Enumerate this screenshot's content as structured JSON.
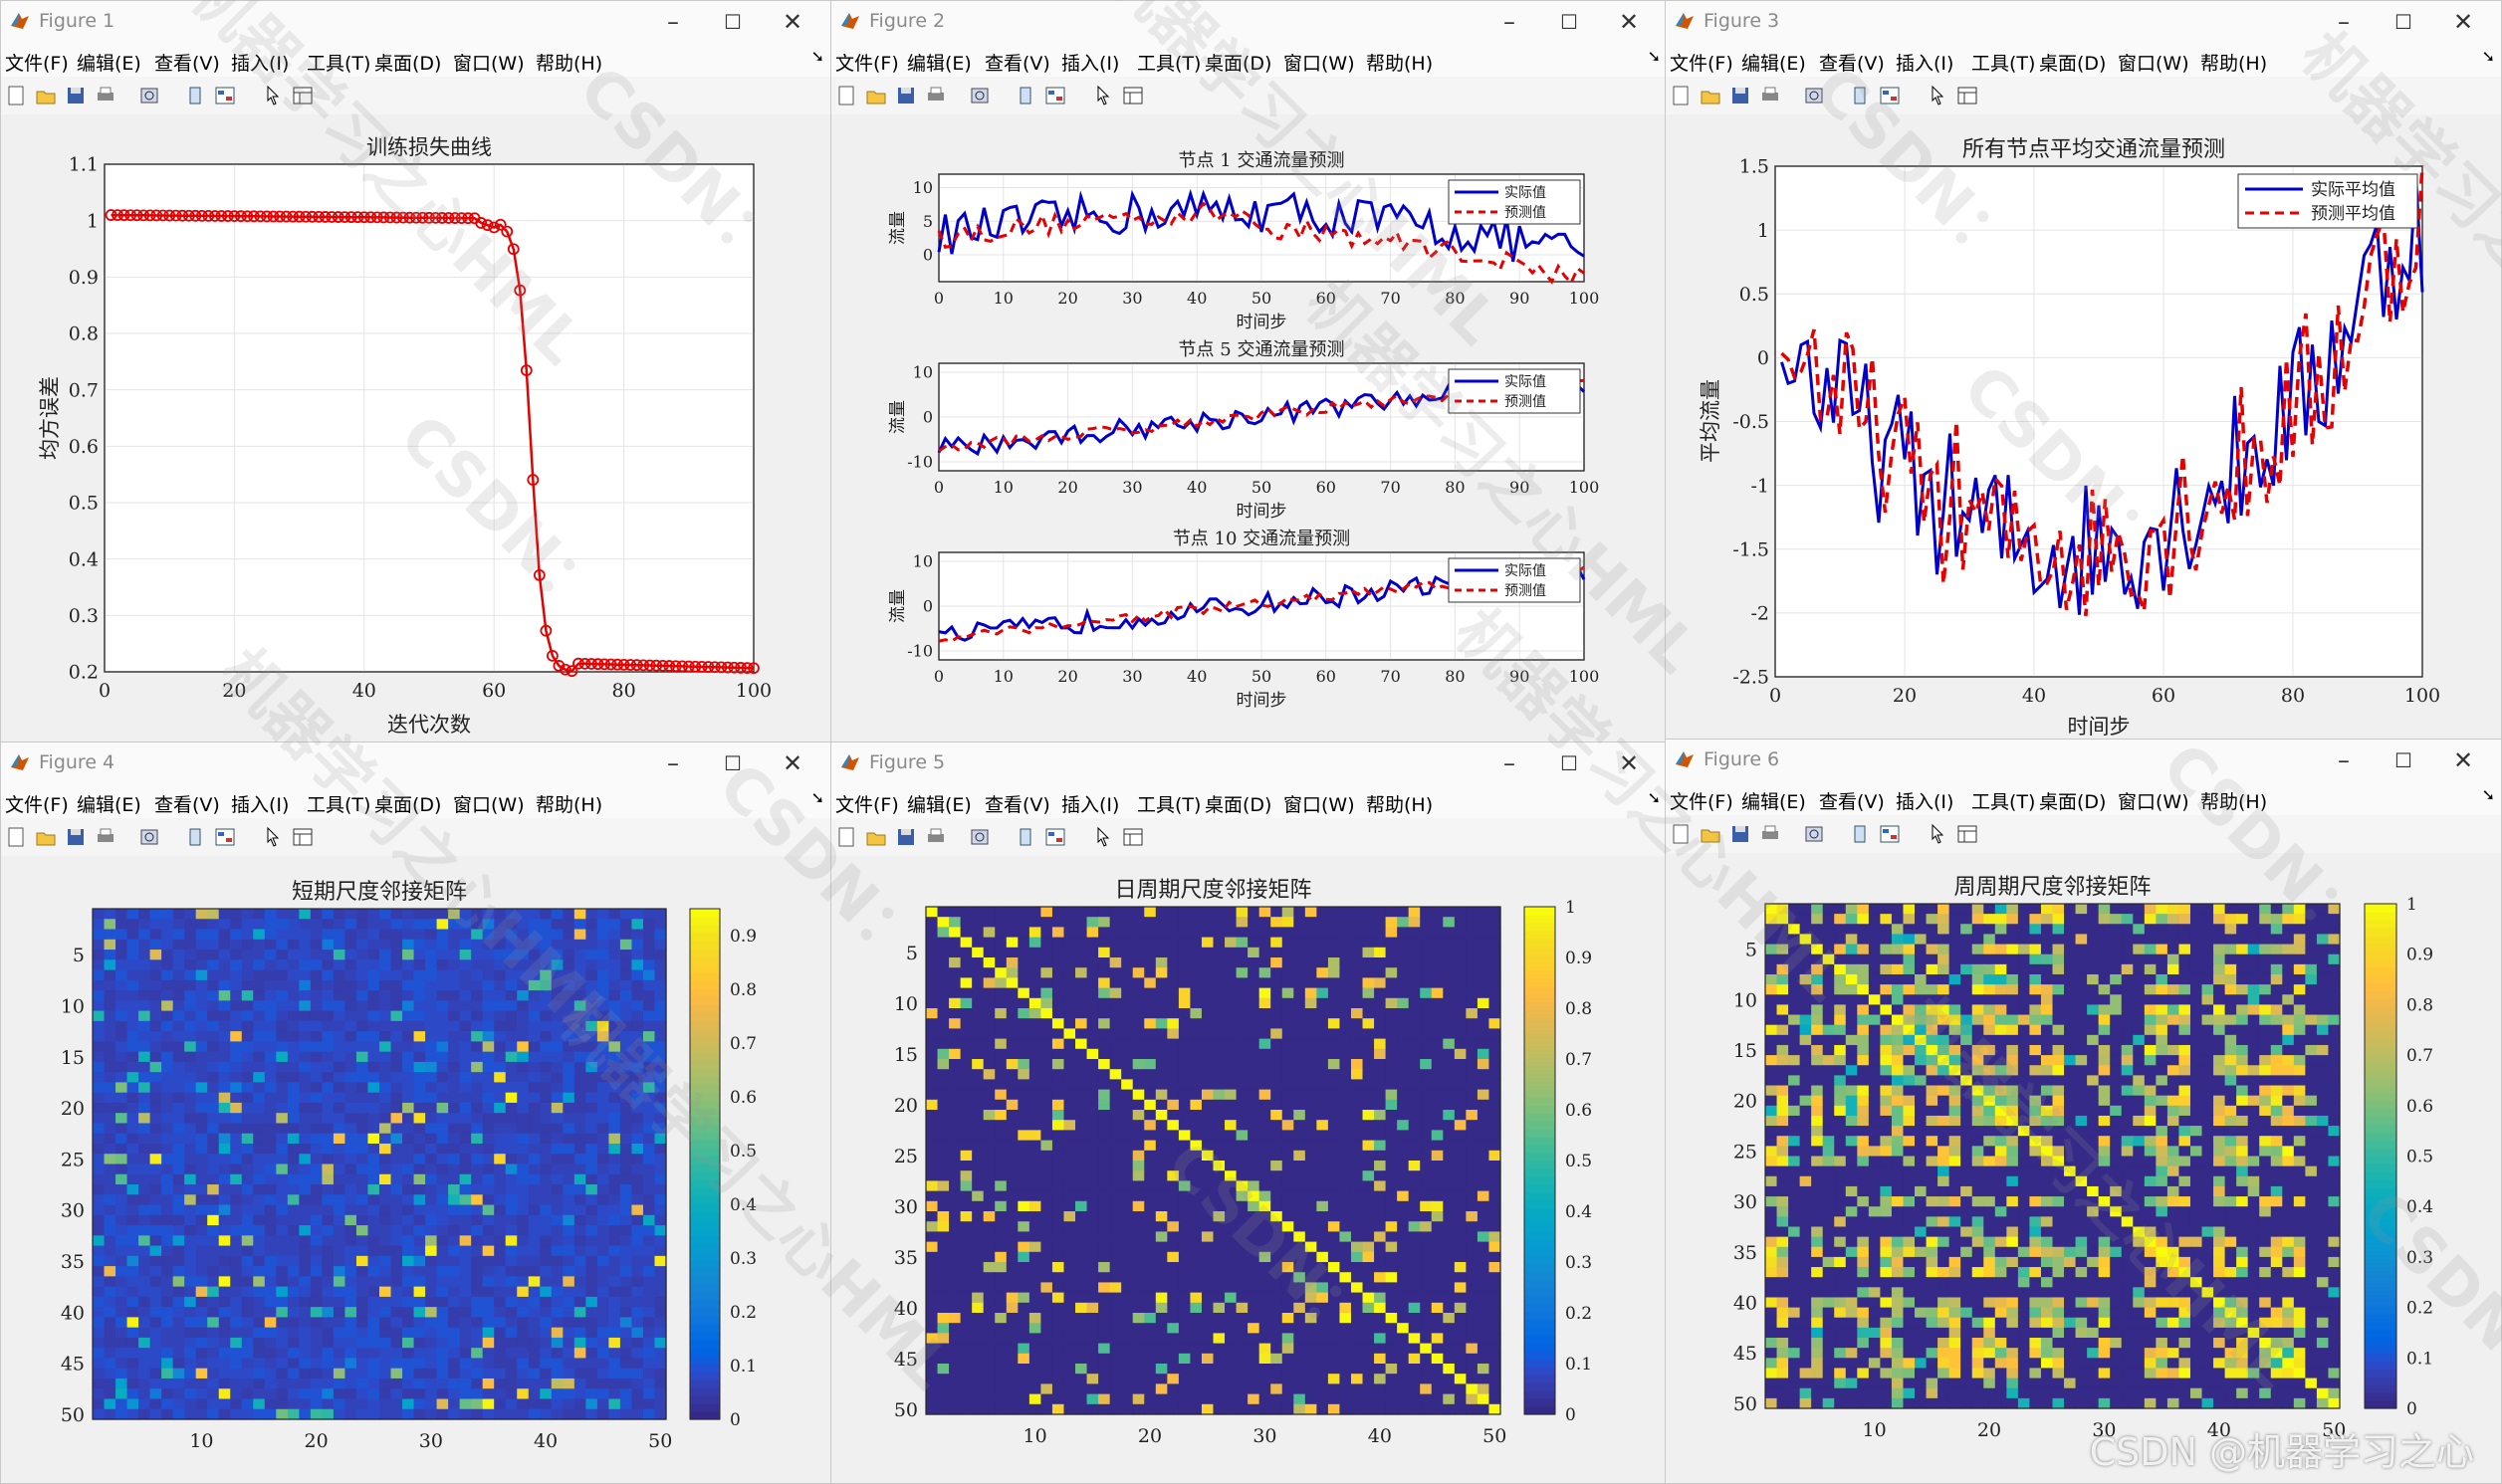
{
  "menu_items": [
    "文件(F)",
    "编辑(E)",
    "查看(V)",
    "插入(I)",
    "工具(T)",
    "桌面(D)",
    "窗口(W)",
    "帮助(H)"
  ],
  "windows": [
    {
      "title": "Figure 1"
    },
    {
      "title": "Figure 2"
    },
    {
      "title": "Figure 3"
    },
    {
      "title": "Figure 4"
    },
    {
      "title": "Figure 5"
    },
    {
      "title": "Figure 6"
    }
  ],
  "fig1": {
    "title": "训练损失曲线",
    "xlabel": "迭代次数",
    "ylabel": "均方误差",
    "xticks": [
      "0",
      "20",
      "40",
      "60",
      "80",
      "100"
    ],
    "yticks": [
      "0.2",
      "0.3",
      "0.4",
      "0.5",
      "0.6",
      "0.7",
      "0.8",
      "0.9",
      "1",
      "1.1"
    ],
    "line_color": "#e60000"
  },
  "fig2": {
    "xlabel": "时间步",
    "ylabel": "流量",
    "xticks": [
      "0",
      "10",
      "20",
      "30",
      "40",
      "50",
      "60",
      "70",
      "80",
      "90",
      "100"
    ],
    "legend": [
      "实际值",
      "预测值"
    ],
    "panels": [
      {
        "title": "节点 1 交通流量预测",
        "yticks": [
          "10",
          "5",
          "0"
        ]
      },
      {
        "title": "节点 5 交通流量预测",
        "yticks": [
          "10",
          "0",
          "-10"
        ]
      },
      {
        "title": "节点 10 交通流量预测",
        "yticks": [
          "10",
          "0",
          "-10"
        ]
      }
    ]
  },
  "fig3": {
    "title": "所有节点平均交通流量预测",
    "xlabel": "时间步",
    "ylabel": "平均流量",
    "xticks": [
      "0",
      "20",
      "40",
      "60",
      "80",
      "100"
    ],
    "yticks": [
      "1.5",
      "1",
      "0.5",
      "0",
      "-0.5",
      "-1",
      "-1.5",
      "-2",
      "-2.5"
    ],
    "legend": [
      "实际平均值",
      "预测平均值"
    ]
  },
  "fig4": {
    "title": "短期尺度邻接矩阵",
    "yticks": [
      "5",
      "10",
      "15",
      "20",
      "25",
      "30",
      "35",
      "40",
      "45",
      "50"
    ],
    "xticks": [
      "10",
      "20",
      "30",
      "40",
      "50"
    ],
    "cbticks": [
      "0.9",
      "0.8",
      "0.7",
      "0.6",
      "0.5",
      "0.4",
      "0.3",
      "0.2",
      "0.1",
      "0"
    ]
  },
  "fig5": {
    "title": "日周期尺度邻接矩阵",
    "yticks": [
      "5",
      "10",
      "15",
      "20",
      "25",
      "30",
      "35",
      "40",
      "45",
      "50"
    ],
    "xticks": [
      "10",
      "20",
      "30",
      "40",
      "50"
    ],
    "cbticks": [
      "1",
      "0.9",
      "0.8",
      "0.7",
      "0.6",
      "0.5",
      "0.4",
      "0.3",
      "0.2",
      "0.1",
      "0"
    ]
  },
  "fig6": {
    "title": "周周期尺度邻接矩阵",
    "yticks": [
      "5",
      "10",
      "15",
      "20",
      "25",
      "30",
      "35",
      "40",
      "45",
      "50"
    ],
    "xticks": [
      "10",
      "20",
      "30",
      "40",
      "50"
    ],
    "cbticks": [
      "1",
      "0.9",
      "0.8",
      "0.7",
      "0.6",
      "0.5",
      "0.4",
      "0.3",
      "0.2",
      "0.1",
      "0"
    ]
  },
  "colors": {
    "actual": "#0000cc",
    "predicted": "#e60000"
  },
  "watermark_main": "机器学习之心HML",
  "watermark_csdn": "CSDN：",
  "watermark_footer": "CSDN @机器学习之心"
}
